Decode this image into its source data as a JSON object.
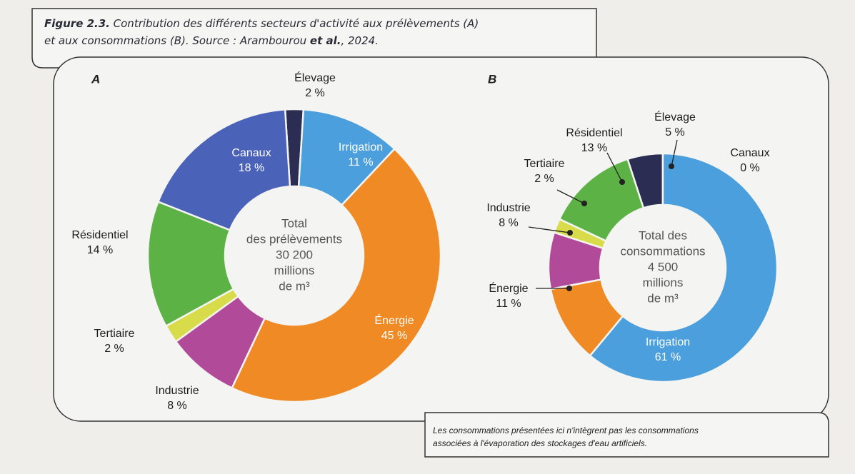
{
  "caption": {
    "label": "Figure 2.3.",
    "text": [
      "Contribution des différents secteurs d'activité aux prélèvements (A)",
      "et aux consommations (B). Source : Arambourou"
    ],
    "emphasis": "et al.",
    "end": ", 2024."
  },
  "chart_data": [
    {
      "type": "donut",
      "title": "A",
      "center_label": [
        "Total",
        "des prélèvements",
        "30 200",
        "millions",
        "de m³"
      ],
      "categories": [
        "Élevage",
        "Irrigation",
        "Énergie",
        "Industrie",
        "Tertiaire",
        "Résidentiel",
        "Canaux"
      ],
      "values": [
        2,
        11,
        45,
        8,
        2,
        14,
        18
      ],
      "value_labels": [
        "2 %",
        "11 %",
        "45 %",
        "8 %",
        "2 %",
        "14 %",
        "18 %"
      ],
      "colors": [
        "#2b2d52",
        "#4a9fdc",
        "#f08a24",
        "#b24a9a",
        "#d8dc4a",
        "#5db246",
        "#4a63b8"
      ]
    },
    {
      "type": "donut",
      "title": "B",
      "center_label": [
        "Total des",
        "consommations",
        "4 500",
        "millions",
        "de m³"
      ],
      "categories": [
        "Élevage",
        "Canaux",
        "Irrigation",
        "Énergie",
        "Industrie",
        "Tertiaire",
        "Résidentiel"
      ],
      "values": [
        5,
        0,
        61,
        11,
        8,
        2,
        13
      ],
      "value_labels": [
        "5 %",
        "0 %",
        "61 %",
        "11 %",
        "8 %",
        "2 %",
        "13 %"
      ],
      "colors": [
        "#2b2d52",
        "#4a63b8",
        "#4a9fdc",
        "#f08a24",
        "#b24a9a",
        "#d8dc4a",
        "#5db246"
      ]
    }
  ],
  "note": [
    "Les consommations présentées ici n'intègrent pas les consommations",
    "associées à l'évaporation des stockages d'eau artificiels."
  ]
}
